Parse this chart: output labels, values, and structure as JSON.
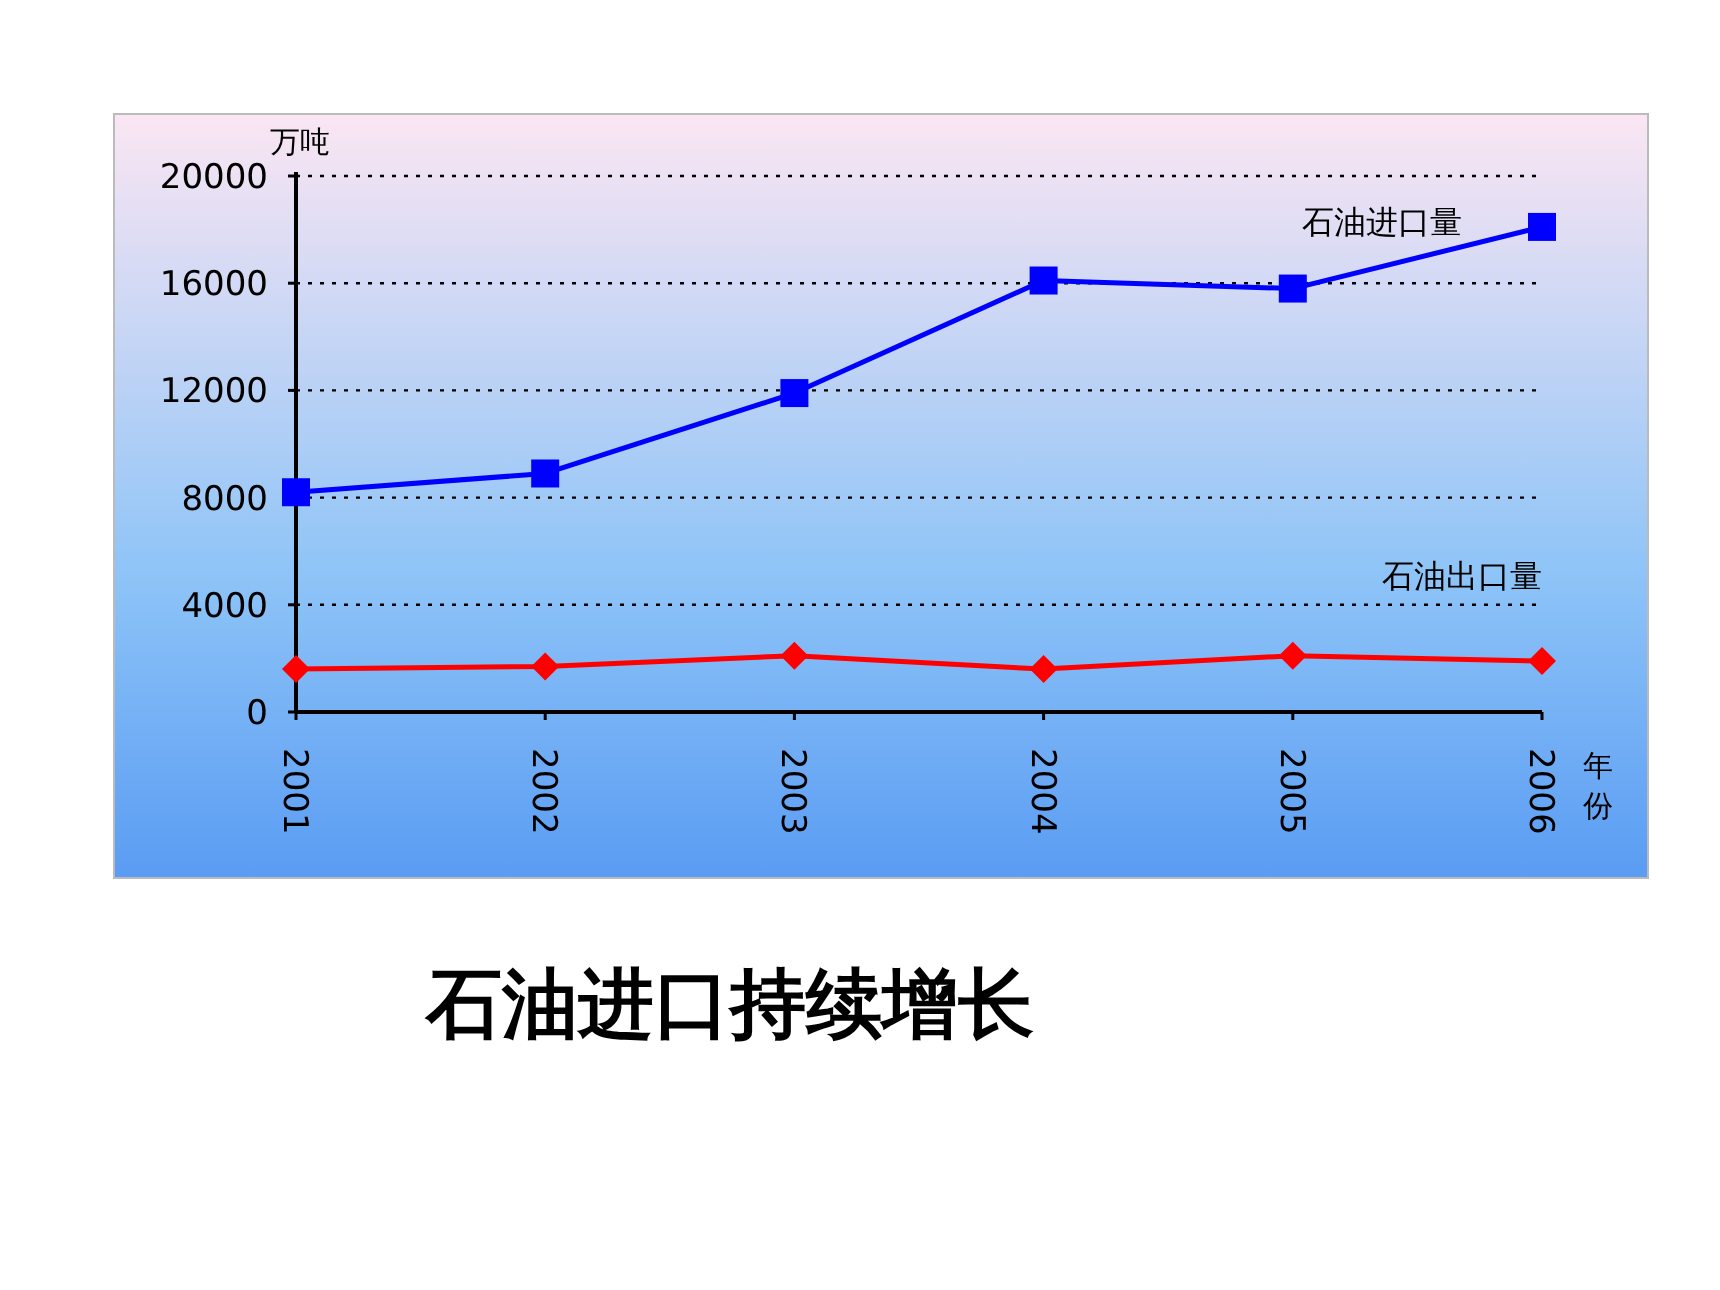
{
  "chart_data": {
    "type": "line",
    "title": "石油进口持续增长",
    "ylabel": "万吨",
    "xlabel": "年份",
    "categories": [
      "2001",
      "2002",
      "2003",
      "2004",
      "2005",
      "2006"
    ],
    "series": [
      {
        "name": "石油进口量",
        "color": "#0000ff",
        "marker": "square",
        "values": [
          8200,
          8900,
          11900,
          16100,
          15800,
          18100
        ]
      },
      {
        "name": "石油出口量",
        "color": "#ff0000",
        "marker": "diamond",
        "values": [
          1600,
          1700,
          2100,
          1600,
          2100,
          1900
        ]
      }
    ],
    "ylim": [
      0,
      20000
    ],
    "yticks": [
      0,
      4000,
      8000,
      12000,
      16000,
      20000
    ],
    "grid": "y",
    "legend": false,
    "line_style": "solid"
  }
}
